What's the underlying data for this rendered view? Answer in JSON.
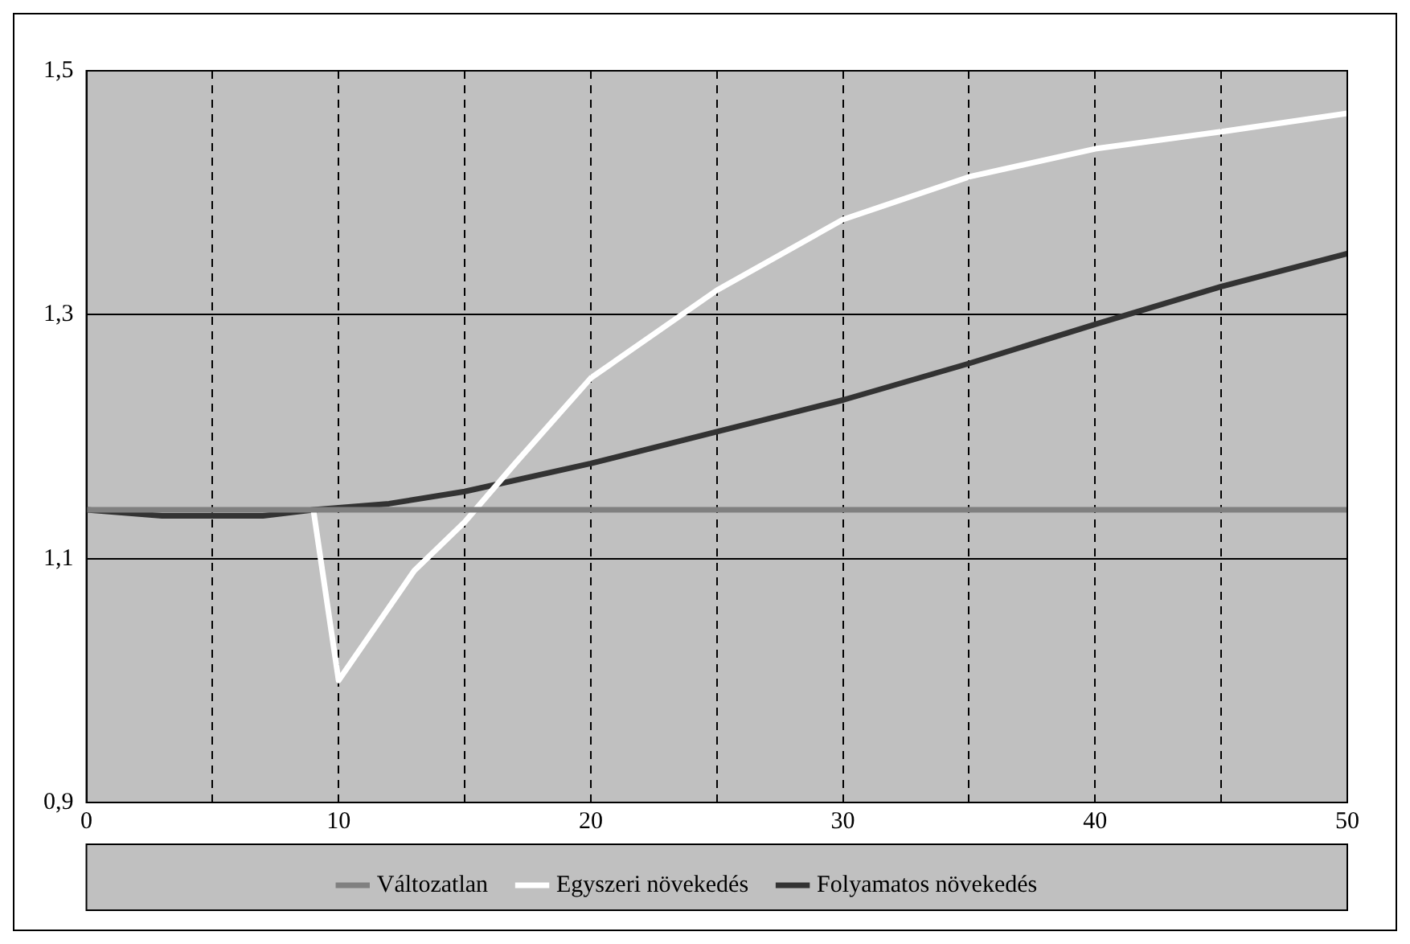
{
  "chart_data": {
    "type": "line",
    "xlim": [
      0,
      50
    ],
    "ylim": [
      0.9,
      1.5
    ],
    "xticks": [
      0,
      {
        "value": 5,
        "label": null
      },
      10,
      {
        "value": 15,
        "label": null
      },
      20,
      {
        "value": 25,
        "label": null
      },
      30,
      {
        "value": 35,
        "label": null
      },
      40,
      {
        "value": 45,
        "label": null
      },
      50
    ],
    "yticks": [
      {
        "value": 0.9,
        "label": "0,9"
      },
      {
        "value": 1.1,
        "label": "1,1"
      },
      {
        "value": 1.3,
        "label": "1,3"
      },
      {
        "value": 1.5,
        "label": "1,5"
      }
    ],
    "grid": true,
    "legend": "bottom",
    "marker": "none",
    "line_style": "solid",
    "series": [
      {
        "name": "Változatlan",
        "color": "#808080",
        "x": [
          0,
          50
        ],
        "values": [
          1.14,
          1.14
        ]
      },
      {
        "name": "Egyszeri növekedés",
        "color": "#ffffff",
        "x": [
          9,
          10,
          13,
          15,
          17,
          20,
          25,
          30,
          35,
          40,
          45,
          50
        ],
        "values": [
          1.14,
          1.0,
          1.09,
          1.13,
          1.178,
          1.248,
          1.32,
          1.378,
          1.413,
          1.436,
          1.45,
          1.465
        ]
      },
      {
        "name": "Folyamatos növekedés",
        "color": "#333333",
        "x": [
          0,
          3,
          7,
          9,
          12,
          15,
          20,
          25,
          30,
          35,
          40,
          45,
          50
        ],
        "values": [
          1.14,
          1.135,
          1.135,
          1.14,
          1.145,
          1.155,
          1.178,
          1.204,
          1.23,
          1.26,
          1.292,
          1.323,
          1.35
        ]
      }
    ]
  }
}
